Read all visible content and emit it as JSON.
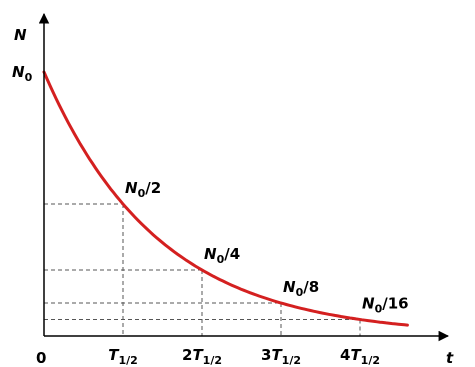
{
  "chart_data": {
    "type": "line",
    "ylabel": "N",
    "xlabel": "t",
    "origin_label": "0",
    "x_ticks": [
      {
        "x": 1,
        "coef": "",
        "var": "T",
        "sub": "1/2"
      },
      {
        "x": 2,
        "coef": "2",
        "var": "T",
        "sub": "1/2"
      },
      {
        "x": 3,
        "coef": "3",
        "var": "T",
        "sub": "1/2"
      },
      {
        "x": 4,
        "coef": "4",
        "var": "T",
        "sub": "1/2"
      }
    ],
    "y_tick": {
      "y": 1,
      "var": "N",
      "sub": "0"
    },
    "points": [
      {
        "x": 1,
        "y": 0.5,
        "var": "N",
        "sub": "0",
        "rest": "/2"
      },
      {
        "x": 2,
        "y": 0.25,
        "var": "N",
        "sub": "0",
        "rest": "/4"
      },
      {
        "x": 3,
        "y": 0.125,
        "var": "N",
        "sub": "0",
        "rest": "/8"
      },
      {
        "x": 4,
        "y": 0.0625,
        "var": "N",
        "sub": "0",
        "rest": "/16"
      }
    ],
    "curve_x_range": [
      0,
      4.6
    ],
    "y_range": [
      0,
      1
    ],
    "grid": false,
    "legend": "none",
    "curve_color": "#d42020"
  }
}
